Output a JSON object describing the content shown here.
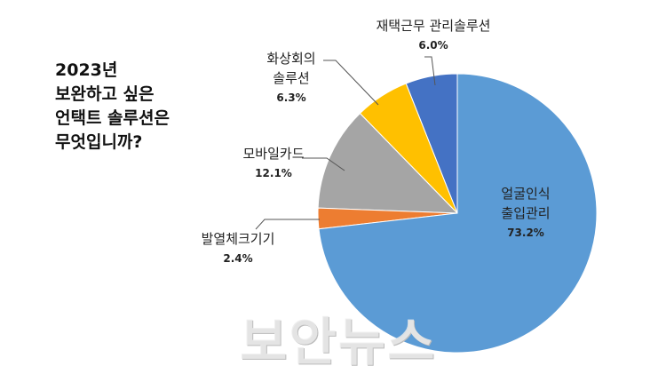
{
  "chart_data": {
    "type": "pie",
    "title": [
      "2023년",
      "보완하고 싶은",
      "언택트 솔루션은",
      "무엇입니까?"
    ],
    "categories": [
      "얼굴인식\n출입관리",
      "발열체크기기",
      "모바일카드",
      "화상회의\n솔루션",
      "재택근무 관리솔루션"
    ],
    "values": [
      73.2,
      2.4,
      12.1,
      6.3,
      6.0
    ],
    "value_labels": [
      "73.2%",
      "2.4%",
      "12.1%",
      "6.3%",
      "6.0%"
    ],
    "colors": [
      "#5b9bd5",
      "#ed7d31",
      "#a5a5a5",
      "#ffc000",
      "#4472c4"
    ],
    "start_angle": 0,
    "direction": "clockwise",
    "watermark": "보안뉴스"
  }
}
